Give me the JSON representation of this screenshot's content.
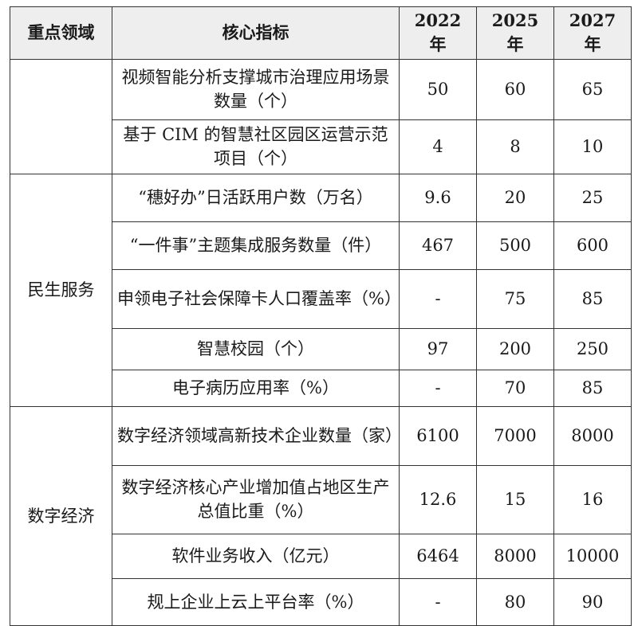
{
  "header": {
    "domain": "重点领域",
    "indicator": "核心指标",
    "y2022": "2022 年",
    "y2025": "2025 年",
    "y2027": "2027 年"
  },
  "groups": [
    {
      "domain": ""
    },
    {
      "domain": "民生服务"
    },
    {
      "domain": "数字经济"
    }
  ],
  "rows": [
    {
      "indicator": "视频智能分析支撑城市治理应用场景数量（个）",
      "v2022": "50",
      "v2025": "60",
      "v2027": "65"
    },
    {
      "indicator": "基于 CIM 的智慧社区园区运营示范项目（个）",
      "v2022": "4",
      "v2025": "8",
      "v2027": "10"
    },
    {
      "indicator": "“穗好办”日活跃用户数（万名）",
      "v2022": "9.6",
      "v2025": "20",
      "v2027": "25"
    },
    {
      "indicator": "“一件事”主题集成服务数量（件）",
      "v2022": "467",
      "v2025": "500",
      "v2027": "600"
    },
    {
      "indicator": "申领电子社会保障卡人口覆盖率（%）",
      "v2022": "-",
      "v2025": "75",
      "v2027": "85"
    },
    {
      "indicator": "智慧校园（个）",
      "v2022": "97",
      "v2025": "200",
      "v2027": "250"
    },
    {
      "indicator": "电子病历应用率（%）",
      "v2022": "-",
      "v2025": "70",
      "v2027": "85"
    },
    {
      "indicator": "数字经济领域高新技术企业数量（家）",
      "v2022": "6100",
      "v2025": "7000",
      "v2027": "8000"
    },
    {
      "indicator": "数字经济核心产业增加值占地区生产总值比重（%）",
      "v2022": "12.6",
      "v2025": "15",
      "v2027": "16"
    },
    {
      "indicator": "软件业务收入（亿元）",
      "v2022": "6464",
      "v2025": "8000",
      "v2027": "10000"
    },
    {
      "indicator": "规上企业上云上平台率（%）",
      "v2022": "-",
      "v2025": "80",
      "v2027": "90"
    }
  ]
}
